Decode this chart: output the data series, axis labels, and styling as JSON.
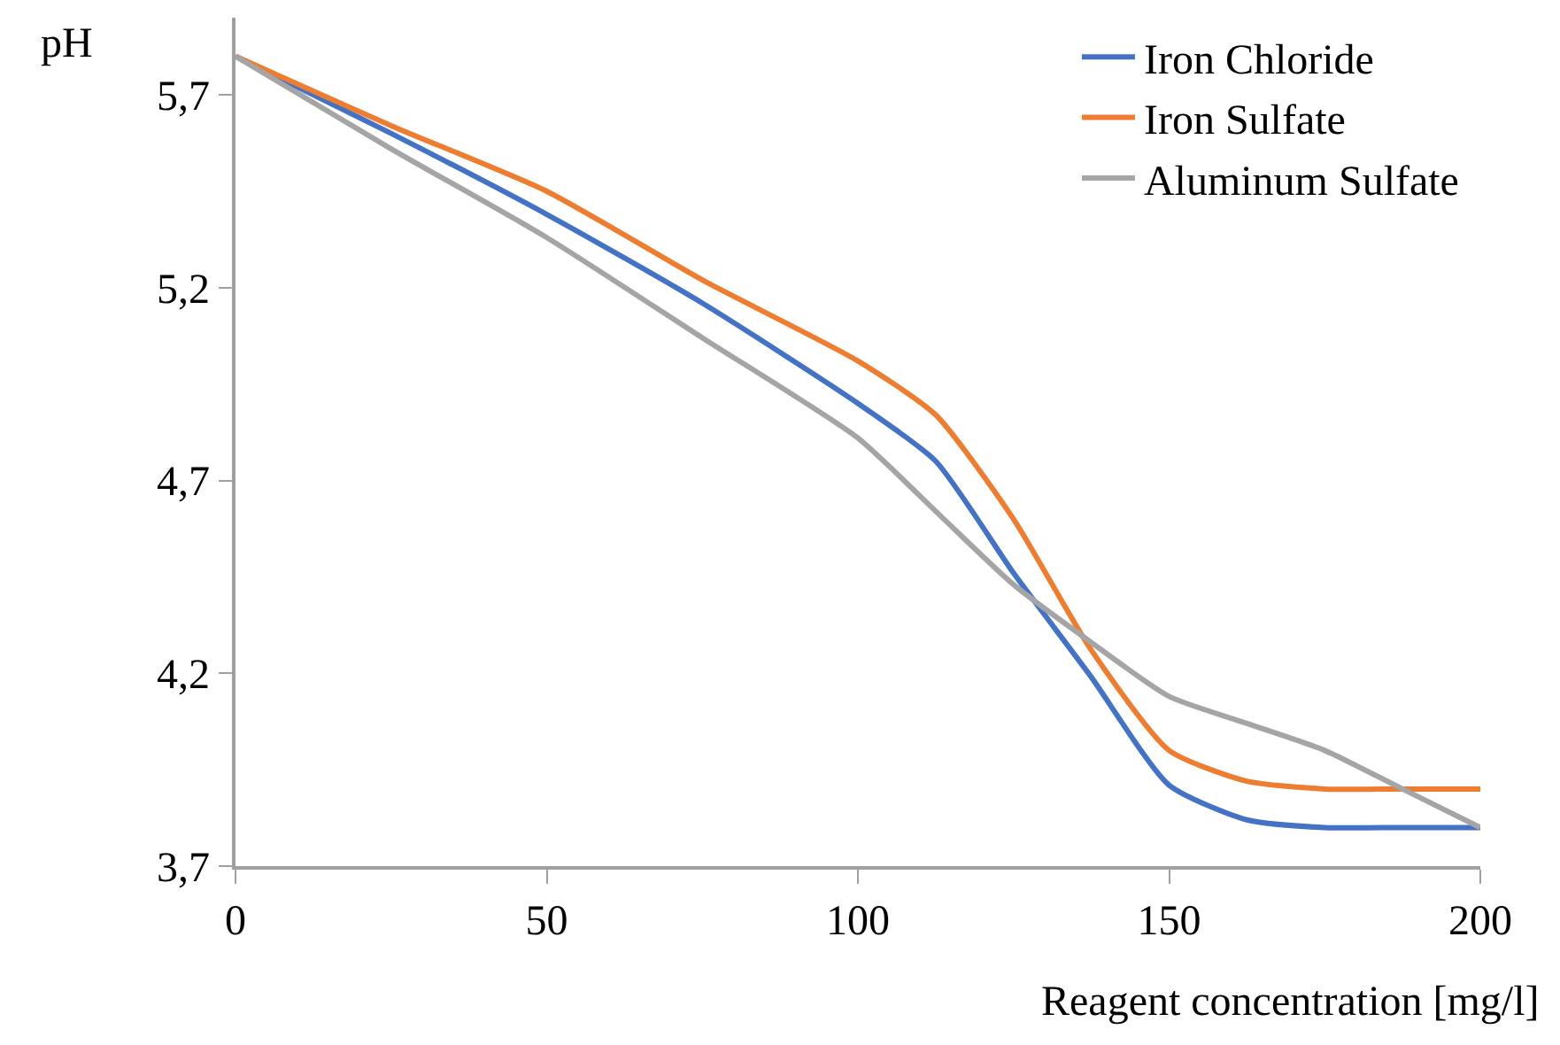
{
  "chart_data": {
    "type": "line",
    "xlabel": "Reagent concentration [mg/l]",
    "ylabel": "pH",
    "x": [
      0,
      25,
      50,
      75,
      100,
      112.5,
      125,
      137.5,
      150,
      162.5,
      175,
      187.5,
      200
    ],
    "series": [
      {
        "name": "Iron Chloride",
        "color": "#4472c4",
        "values": [
          5.8,
          5.6,
          5.39,
          5.16,
          4.9,
          4.75,
          4.46,
          4.19,
          3.91,
          3.82,
          3.8,
          3.8,
          3.8
        ]
      },
      {
        "name": "Iron Sulfate",
        "color": "#ed7d31",
        "values": [
          5.8,
          5.62,
          5.45,
          5.22,
          5.01,
          4.87,
          4.6,
          4.26,
          4.0,
          3.92,
          3.9,
          3.9,
          3.9
        ]
      },
      {
        "name": "Aluminum Sulfate",
        "color": "#a5a5a5",
        "values": [
          5.8,
          5.56,
          5.33,
          5.07,
          4.81,
          4.62,
          4.43,
          4.28,
          4.14,
          4.07,
          4.0,
          3.9,
          3.8
        ]
      }
    ],
    "xlim": [
      0,
      200
    ],
    "xticks": [
      0,
      50,
      100,
      150,
      200
    ],
    "ylim": [
      3.7,
      5.9
    ],
    "yticks": [
      {
        "value": 3.7,
        "label": "3,7"
      },
      {
        "value": 4.2,
        "label": "4,2"
      },
      {
        "value": 4.7,
        "label": "4,7"
      },
      {
        "value": 5.2,
        "label": "5,2"
      },
      {
        "value": 5.7,
        "label": "5,7"
      }
    ],
    "grid": false,
    "legend": "top right",
    "marker": "none",
    "line_style": "solid"
  }
}
